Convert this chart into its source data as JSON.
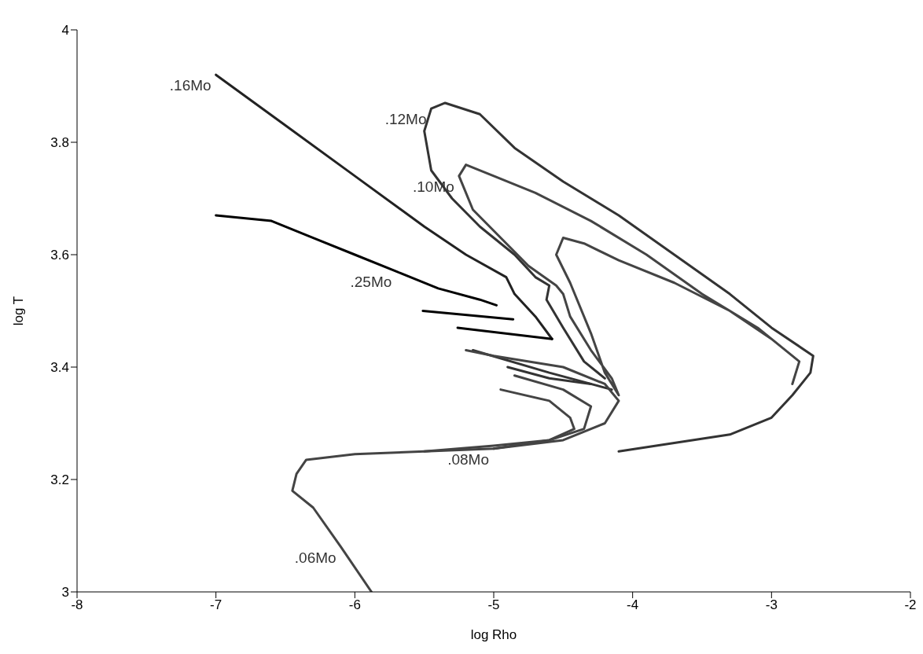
{
  "chart_data": {
    "type": "line",
    "xlabel": "log Rho",
    "ylabel": "log T",
    "xlim": [
      -8,
      -2
    ],
    "ylim": [
      3,
      4
    ],
    "xticks": [
      -8,
      -7,
      -6,
      -5,
      -4,
      -3,
      -2
    ],
    "yticks": [
      3,
      3.2,
      3.4,
      3.6,
      3.8,
      4
    ],
    "grid": false,
    "marker": "none",
    "line_style": "solid",
    "series": [
      {
        "color": "#222222",
        "x": [
          -7.0,
          -6.5,
          -6.0,
          -5.5,
          -5.2,
          -4.91,
          -4.85,
          -4.7,
          -4.58
        ],
        "values": [
          3.92,
          3.83,
          3.74,
          3.65,
          3.6,
          3.56,
          3.53,
          3.49,
          3.45
        ]
      },
      {
        "color": "#000000",
        "x": [
          -7.0,
          -6.6,
          -6.3,
          -6.0,
          -5.7,
          -5.4,
          -5.1,
          -4.98
        ],
        "values": [
          3.67,
          3.66,
          3.63,
          3.6,
          3.57,
          3.54,
          3.52,
          3.51
        ]
      },
      {
        "color": "#000000",
        "x": [
          -5.51,
          -4.86
        ],
        "values": [
          3.5,
          3.485
        ]
      },
      {
        "color": "#000000",
        "x": [
          -5.26,
          -4.58
        ],
        "values": [
          3.47,
          3.45
        ]
      },
      {
        "color": "#333333",
        "x": [
          -4.1,
          -3.7,
          -3.3,
          -3.0,
          -2.85,
          -2.72,
          -2.7,
          -3.0,
          -3.3,
          -3.7,
          -4.1,
          -4.5,
          -4.85,
          -5.1,
          -5.35,
          -5.45,
          -5.5,
          -5.45,
          -5.3,
          -5.1,
          -4.85,
          -4.7,
          -4.6,
          -4.62,
          -4.5,
          -4.35,
          -4.2
        ],
        "values": [
          3.25,
          3.265,
          3.28,
          3.31,
          3.35,
          3.39,
          3.42,
          3.47,
          3.53,
          3.6,
          3.67,
          3.73,
          3.79,
          3.85,
          3.87,
          3.86,
          3.82,
          3.75,
          3.7,
          3.65,
          3.6,
          3.56,
          3.545,
          3.52,
          3.47,
          3.41,
          3.38
        ]
      },
      {
        "color": "#444444",
        "x": [
          -2.85,
          -2.8,
          -3.1,
          -3.5,
          -3.9,
          -4.3,
          -4.7,
          -5.0,
          -5.2,
          -5.25,
          -5.15,
          -4.95,
          -4.75,
          -4.55,
          -4.5,
          -4.45,
          -4.3,
          -4.15,
          -4.1,
          -4.2,
          -4.3,
          -4.45,
          -4.55,
          -4.5,
          -4.35,
          -4.1,
          -3.7,
          -3.3,
          -3.0
        ],
        "values": [
          3.37,
          3.41,
          3.47,
          3.53,
          3.6,
          3.66,
          3.71,
          3.74,
          3.76,
          3.74,
          3.68,
          3.63,
          3.58,
          3.545,
          3.53,
          3.49,
          3.43,
          3.38,
          3.35,
          3.39,
          3.46,
          3.55,
          3.6,
          3.63,
          3.62,
          3.59,
          3.55,
          3.5,
          3.45
        ]
      },
      {
        "color": "#333333",
        "x": [
          -5.15,
          -4.6,
          -4.15
        ],
        "values": [
          3.43,
          3.39,
          3.36
        ]
      },
      {
        "color": "#333333",
        "x": [
          -4.9,
          -4.6,
          -4.3
        ],
        "values": [
          3.4,
          3.38,
          3.37
        ]
      },
      {
        "color": "#444444",
        "x": [
          -4.85,
          -4.5,
          -4.3,
          -4.35,
          -4.6,
          -5.0,
          -5.5
        ],
        "values": [
          3.385,
          3.36,
          3.33,
          3.29,
          3.27,
          3.26,
          3.25
        ]
      },
      {
        "color": "#444444",
        "x": [
          -4.95,
          -4.6,
          -4.45,
          -4.42,
          -4.6,
          -5.0
        ],
        "values": [
          3.36,
          3.34,
          3.31,
          3.29,
          3.27,
          3.255
        ]
      },
      {
        "color": "#444444",
        "x": [
          -5.88,
          -6.1,
          -6.3,
          -6.45,
          -6.42,
          -6.35,
          -6.0,
          -5.5,
          -5.0,
          -4.5,
          -4.2,
          -4.1,
          -4.2,
          -4.5,
          -5.0,
          -5.2
        ],
        "values": [
          3.0,
          3.08,
          3.15,
          3.18,
          3.21,
          3.235,
          3.245,
          3.25,
          3.255,
          3.27,
          3.3,
          3.34,
          3.37,
          3.4,
          3.42,
          3.43
        ]
      }
    ],
    "annotations": [
      {
        "text": ".16Mo",
        "x": -7.0,
        "y": 3.92
      },
      {
        "text": ".12Mo",
        "x": -5.45,
        "y": 3.86
      },
      {
        "text": ".10Mo",
        "x": -5.25,
        "y": 3.74
      },
      {
        "text": ".25Mo",
        "x": -5.7,
        "y": 3.57
      },
      {
        "text": ".08Mo",
        "x": -5.0,
        "y": 3.255
      },
      {
        "text": ".06Mo",
        "x": -6.1,
        "y": 3.08
      }
    ]
  }
}
